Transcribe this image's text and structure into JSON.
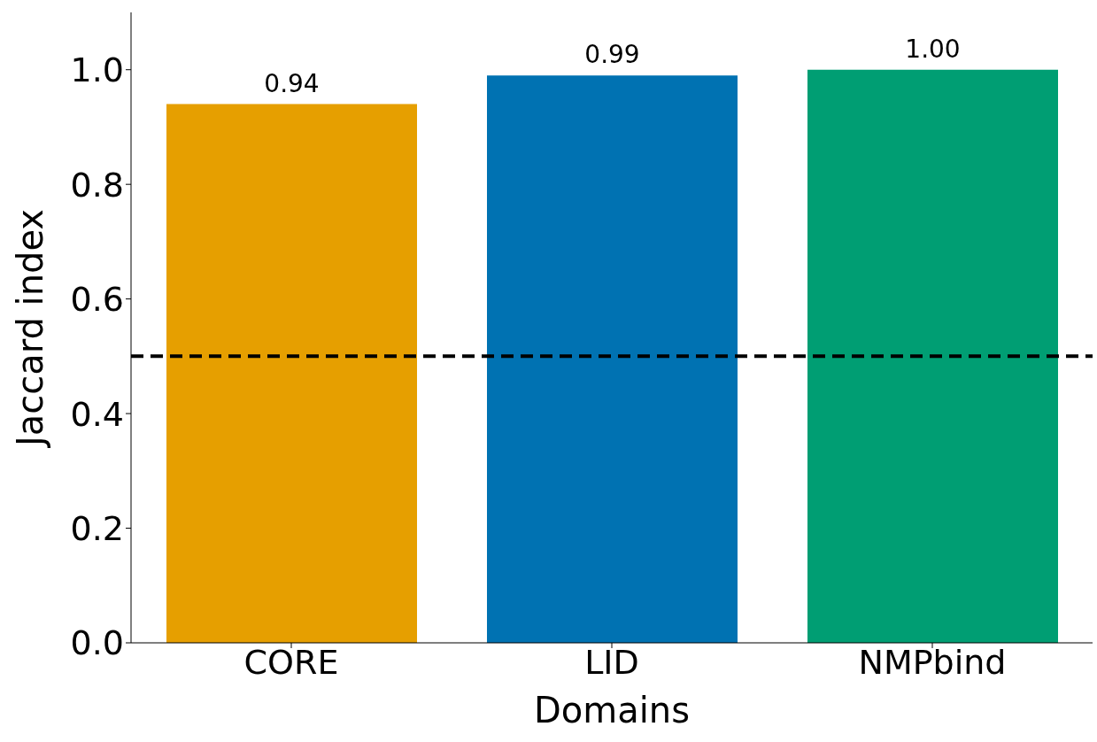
{
  "chart_data": {
    "type": "bar",
    "xlabel": "Domains",
    "ylabel": "Jaccard index",
    "categories": [
      "CORE",
      "LID",
      "NMPbind"
    ],
    "values": [
      0.94,
      0.99,
      1.0
    ],
    "value_labels": [
      "0.94",
      "0.99",
      "1.00"
    ],
    "colors": [
      "#e69f00",
      "#0072b2",
      "#009e73"
    ],
    "ylim": [
      0,
      1.1
    ],
    "yticks": [
      {
        "value": 0,
        "label": "0.0"
      },
      {
        "value": 0.2,
        "label": "0.2"
      },
      {
        "value": 0.4,
        "label": "0.4"
      },
      {
        "value": 0.6,
        "label": "0.6"
      },
      {
        "value": 0.8,
        "label": "0.8"
      },
      {
        "value": 1.0,
        "label": "1.0"
      }
    ],
    "ref_lines": [
      {
        "axis": "y",
        "value": 0.5,
        "color": "#000000",
        "line_style": "dashed"
      }
    ],
    "grid": false,
    "legend": false
  }
}
